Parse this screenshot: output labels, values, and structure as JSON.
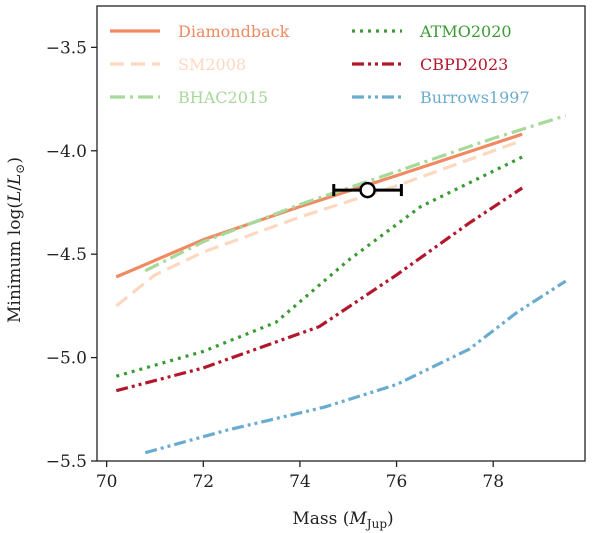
{
  "chart_data": {
    "type": "line",
    "xlabel": "Mass (M_Jup)",
    "ylabel": "Minimum log(L/L_⊙)",
    "xlabel_main": "Mass (",
    "xlabel_sym": "M",
    "xlabel_sub": "Jup",
    "xlabel_close": ")",
    "ylabel_main": "Minimum log(",
    "ylabel_sym_L": "L",
    "ylabel_slash": "/",
    "ylabel_sym_L2": "L",
    "ylabel_sub": "⊙",
    "ylabel_close": ")",
    "xlim": [
      69.8,
      79.9
    ],
    "ylim": [
      -5.5,
      -3.3
    ],
    "xticks": [
      70,
      72,
      74,
      76,
      78
    ],
    "xtick_labels": [
      "70",
      "72",
      "74",
      "76",
      "78"
    ],
    "yticks": [
      -5.5,
      -5.0,
      -4.5,
      -4.0,
      -3.5
    ],
    "ytick_labels": [
      "−5.5",
      "−5.0",
      "−4.5",
      "−4.0",
      "−3.5"
    ],
    "grid": false,
    "legend_position": "top",
    "series": [
      {
        "name": "Diamondback",
        "color": "#ef8a62",
        "dash": "solid",
        "x": [
          70.2,
          72.0,
          74.0,
          76.0,
          78.6
        ],
        "y": [
          -4.61,
          -4.43,
          -4.27,
          -4.12,
          -3.92
        ]
      },
      {
        "name": "SM2008",
        "color": "#fdd8c1",
        "dash": "dashed",
        "x": [
          70.2,
          71.0,
          72.0,
          74.0,
          76.0,
          78.6
        ],
        "y": [
          -4.75,
          -4.6,
          -4.49,
          -4.32,
          -4.17,
          -3.95
        ]
      },
      {
        "name": "BHAC2015",
        "color": "#a6d99a",
        "dash": "dashdot",
        "x": [
          70.8,
          72.0,
          74.0,
          76.0,
          78.0,
          79.5
        ],
        "y": [
          -4.58,
          -4.44,
          -4.26,
          -4.1,
          -3.94,
          -3.83
        ]
      },
      {
        "name": "ATMO2020",
        "color": "#3a9b34",
        "dash": "dotted",
        "x": [
          70.2,
          72.0,
          73.5,
          75.0,
          76.5,
          78.6
        ],
        "y": [
          -5.09,
          -4.97,
          -4.83,
          -4.53,
          -4.27,
          -4.03
        ]
      },
      {
        "name": "CBPD2023",
        "color": "#b2182b",
        "dash": "dashdotdot",
        "x": [
          70.2,
          72.0,
          74.4,
          76.0,
          77.5,
          78.6
        ],
        "y": [
          -5.16,
          -5.05,
          -4.85,
          -4.6,
          -4.35,
          -4.18
        ]
      },
      {
        "name": "Burrows1997",
        "color": "#6aacd0",
        "dash": "dashdotdot",
        "x": [
          70.8,
          72.5,
          74.5,
          76.0,
          77.5,
          78.5,
          79.5
        ],
        "y": [
          -5.46,
          -5.35,
          -5.24,
          -5.13,
          -4.96,
          -4.78,
          -4.63
        ]
      }
    ],
    "measurement": {
      "x": 75.4,
      "y": -4.19,
      "xerr": 0.7,
      "color": "#000000"
    }
  }
}
